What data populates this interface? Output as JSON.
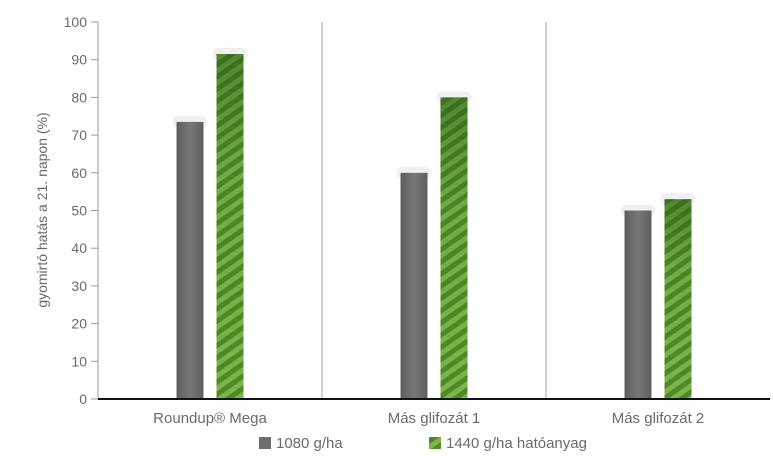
{
  "chart_data": {
    "type": "bar",
    "categories": [
      "Roundup® Mega",
      "Más glifozát 1",
      "Más glifozát 2"
    ],
    "series": [
      {
        "name": "1080 g/ha",
        "values": [
          73.5,
          60,
          50
        ],
        "color": "#6e6e6e",
        "pattern": "solid"
      },
      {
        "name": "1440 g/ha hatóanyag",
        "values": [
          91.5,
          80,
          53
        ],
        "color": "#5a9a2e",
        "pattern": "diagonal-stripes"
      }
    ],
    "title": "",
    "xlabel": "",
    "ylabel": "gyomirtó hatás a 21. napon (%)",
    "ylim": [
      0,
      100
    ],
    "yticks": [
      0,
      10,
      20,
      30,
      40,
      50,
      60,
      70,
      80,
      90,
      100
    ],
    "grid": "vertical category separators",
    "legend_position": "bottom"
  }
}
